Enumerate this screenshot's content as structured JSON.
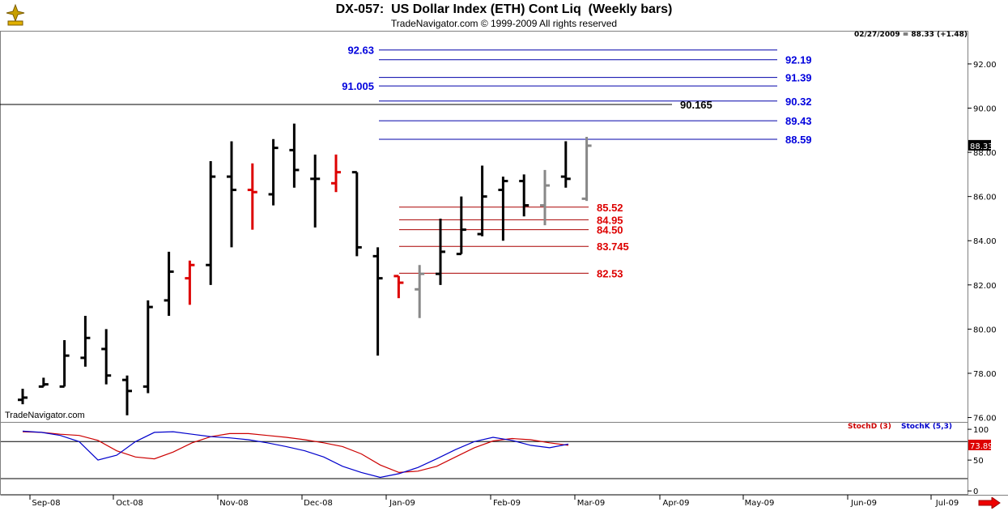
{
  "chart_data": [
    {
      "type": "bar",
      "subtype": "ohlc",
      "title": "DX-057:  US Dollar Index (ETH) Cont Liq  (Weekly bars)",
      "subtitle": "TradeNavigator.com © 1999-2009 All rights reserved",
      "watermark": "TradeNavigator.com",
      "last_readout": "02/27/2009 = 88.33 (+1.48)",
      "last_value_label": "88.33",
      "ylim": [
        75.8,
        93.5
      ],
      "y_ticks": [
        "76.00",
        "78.00",
        "80.00",
        "82.00",
        "84.00",
        "86.00",
        "88.00",
        "90.00",
        "92.00"
      ],
      "x_labels": [
        "Sep-08",
        "Oct-08",
        "Nov-08",
        "Dec-08",
        "Jan-09",
        "Feb-09",
        "Mar-09",
        "Apr-09",
        "May-09",
        "Jun-09",
        "Jul-09"
      ],
      "bars": [
        {
          "o": 76.8,
          "h": 77.3,
          "l": 76.6,
          "c": 76.9,
          "color": "#000000"
        },
        {
          "o": 77.4,
          "h": 77.8,
          "l": 77.4,
          "c": 77.5,
          "color": "#000000"
        },
        {
          "o": 77.4,
          "h": 79.5,
          "l": 77.4,
          "c": 78.8,
          "color": "#000000"
        },
        {
          "o": 78.7,
          "h": 80.6,
          "l": 78.3,
          "c": 79.6,
          "color": "#000000"
        },
        {
          "o": 79.1,
          "h": 80.0,
          "l": 77.5,
          "c": 77.9,
          "color": "#000000"
        },
        {
          "o": 77.7,
          "h": 77.9,
          "l": 76.1,
          "c": 77.2,
          "color": "#000000"
        },
        {
          "o": 77.4,
          "h": 81.3,
          "l": 77.1,
          "c": 81.0,
          "color": "#000000"
        },
        {
          "o": 81.3,
          "h": 83.5,
          "l": 80.6,
          "c": 82.6,
          "color": "#000000"
        },
        {
          "o": 82.3,
          "h": 83.1,
          "l": 81.1,
          "c": 82.9,
          "color": "#dd0000"
        },
        {
          "o": 82.9,
          "h": 87.6,
          "l": 82.0,
          "c": 86.9,
          "color": "#000000"
        },
        {
          "o": 86.9,
          "h": 88.5,
          "l": 83.7,
          "c": 86.3,
          "color": "#000000"
        },
        {
          "o": 86.3,
          "h": 87.5,
          "l": 84.5,
          "c": 86.2,
          "color": "#dd0000"
        },
        {
          "o": 86.1,
          "h": 88.6,
          "l": 85.6,
          "c": 88.2,
          "color": "#000000"
        },
        {
          "o": 88.1,
          "h": 89.3,
          "l": 86.4,
          "c": 87.2,
          "color": "#000000"
        },
        {
          "o": 86.8,
          "h": 87.9,
          "l": 84.6,
          "c": 86.8,
          "color": "#000000"
        },
        {
          "o": 86.6,
          "h": 87.9,
          "l": 86.2,
          "c": 87.1,
          "color": "#dd0000"
        },
        {
          "o": 87.1,
          "h": 87.1,
          "l": 83.3,
          "c": 83.7,
          "color": "#000000"
        },
        {
          "o": 83.3,
          "h": 83.7,
          "l": 78.8,
          "c": 82.3,
          "color": "#000000"
        },
        {
          "o": 82.4,
          "h": 82.4,
          "l": 81.4,
          "c": 82.1,
          "color": "#dd0000"
        },
        {
          "o": 81.8,
          "h": 82.9,
          "l": 80.5,
          "c": 82.5,
          "color": "#888888"
        },
        {
          "o": 82.5,
          "h": 85.0,
          "l": 82.0,
          "c": 83.5,
          "color": "#000000"
        },
        {
          "o": 83.4,
          "h": 86.0,
          "l": 83.4,
          "c": 84.5,
          "color": "#000000"
        },
        {
          "o": 84.3,
          "h": 87.4,
          "l": 84.2,
          "c": 86.0,
          "color": "#000000"
        },
        {
          "o": 86.3,
          "h": 86.9,
          "l": 84.0,
          "c": 86.7,
          "color": "#000000"
        },
        {
          "o": 86.7,
          "h": 87.0,
          "l": 85.1,
          "c": 85.6,
          "color": "#000000"
        },
        {
          "o": 85.6,
          "h": 87.2,
          "l": 84.7,
          "c": 86.5,
          "color": "#888888"
        },
        {
          "o": 86.9,
          "h": 88.5,
          "l": 86.4,
          "c": 86.8,
          "color": "#000000"
        },
        {
          "o": 85.9,
          "h": 88.7,
          "l": 85.8,
          "c": 88.3,
          "color": "#888888"
        }
      ],
      "levels_blue": [
        {
          "value": 92.63,
          "label": "92.63",
          "label_side": "left"
        },
        {
          "value": 92.19,
          "label": "92.19",
          "label_side": "right"
        },
        {
          "value": 91.39,
          "label": "91.39",
          "label_side": "right"
        },
        {
          "value": 91.005,
          "label": "91.005",
          "label_side": "left"
        },
        {
          "value": 90.32,
          "label": "90.32",
          "label_side": "right"
        },
        {
          "value": 89.43,
          "label": "89.43",
          "label_side": "right"
        },
        {
          "value": 88.59,
          "label": "88.59",
          "label_side": "right"
        }
      ],
      "level_black": {
        "value": 90.165,
        "label": "90.165"
      },
      "levels_red": [
        {
          "value": 85.52,
          "label": "85.52"
        },
        {
          "value": 84.95,
          "label": "84.95"
        },
        {
          "value": 84.5,
          "label": "84.50"
        },
        {
          "value": 83.745,
          "label": "83.745"
        },
        {
          "value": 82.53,
          "label": "82.53"
        }
      ]
    },
    {
      "type": "line",
      "title": "",
      "ylim": [
        -5,
        108
      ],
      "y_ticks": [
        "0",
        "50",
        "100"
      ],
      "reference_lines": [
        80,
        20
      ],
      "last_value_label": "73.89",
      "series": [
        {
          "name": "StochD (3)",
          "color": "#cc0000",
          "values": [
            96,
            95,
            92,
            90,
            82,
            65,
            55,
            52,
            63,
            78,
            88,
            93,
            93,
            90,
            87,
            83,
            78,
            72,
            60,
            42,
            30,
            32,
            40,
            55,
            70,
            81,
            85,
            83,
            78,
            74
          ]
        },
        {
          "name": "StochK (5,3)",
          "color": "#0000cc",
          "values": [
            97,
            95,
            90,
            80,
            50,
            58,
            80,
            95,
            96,
            92,
            88,
            86,
            83,
            78,
            72,
            65,
            55,
            40,
            30,
            22,
            28,
            38,
            52,
            67,
            80,
            87,
            82,
            74,
            70,
            76
          ]
        }
      ]
    }
  ]
}
